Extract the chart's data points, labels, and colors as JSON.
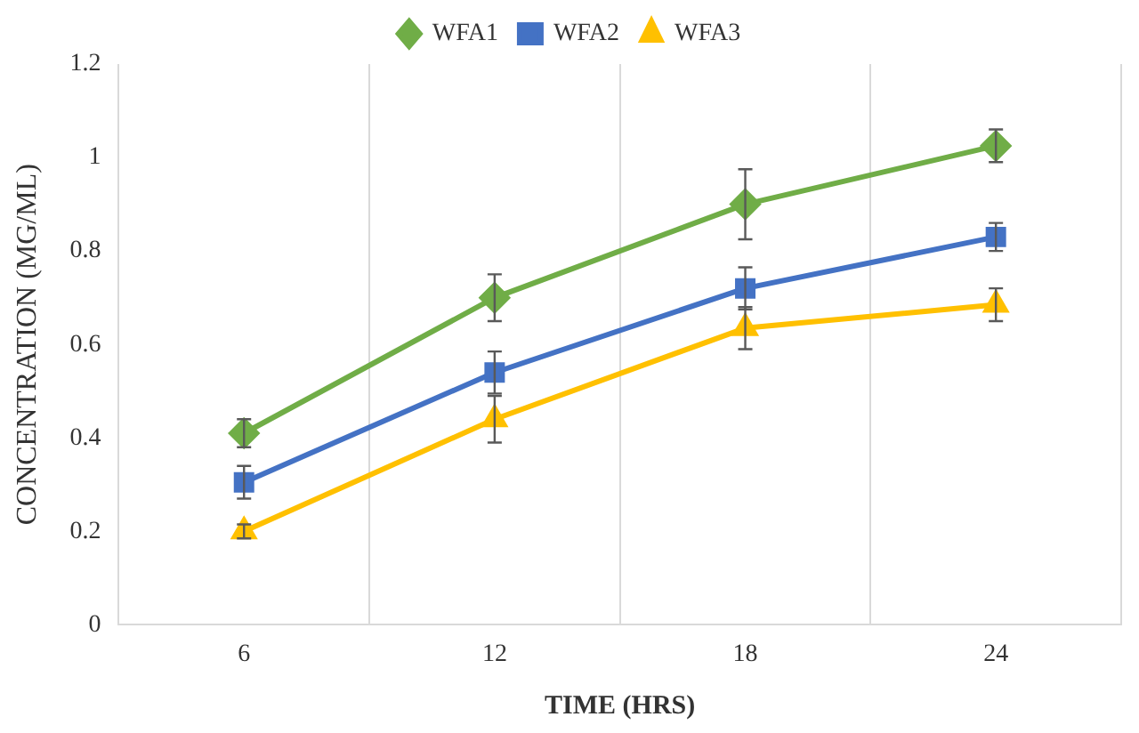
{
  "chart_data": {
    "type": "line",
    "xlabel": "TIME (HRS)",
    "ylabel": "CONCENTRATION (MG/ML)",
    "categories": [
      "6",
      "12",
      "18",
      "24"
    ],
    "series": [
      {
        "name": "WFA1",
        "color": "#70ad47",
        "marker": "diamond",
        "values": [
          0.41,
          0.7,
          0.9,
          1.025
        ],
        "errors": [
          0.03,
          0.05,
          0.075,
          0.035
        ]
      },
      {
        "name": "WFA2",
        "color": "#4472c4",
        "marker": "square",
        "values": [
          0.305,
          0.54,
          0.72,
          0.83
        ],
        "errors": [
          0.035,
          0.045,
          0.045,
          0.03
        ]
      },
      {
        "name": "WFA3",
        "color": "#ffc000",
        "marker": "triangle",
        "values": [
          0.2,
          0.44,
          0.635,
          0.685
        ],
        "errors": [
          0.015,
          0.05,
          0.045,
          0.035
        ]
      }
    ],
    "ylim": [
      0,
      1.2
    ],
    "yticks": [
      0,
      0.2,
      0.4,
      0.6,
      0.8,
      1,
      1.2
    ],
    "grid": "x",
    "legend": "top",
    "line_style": "solid"
  }
}
